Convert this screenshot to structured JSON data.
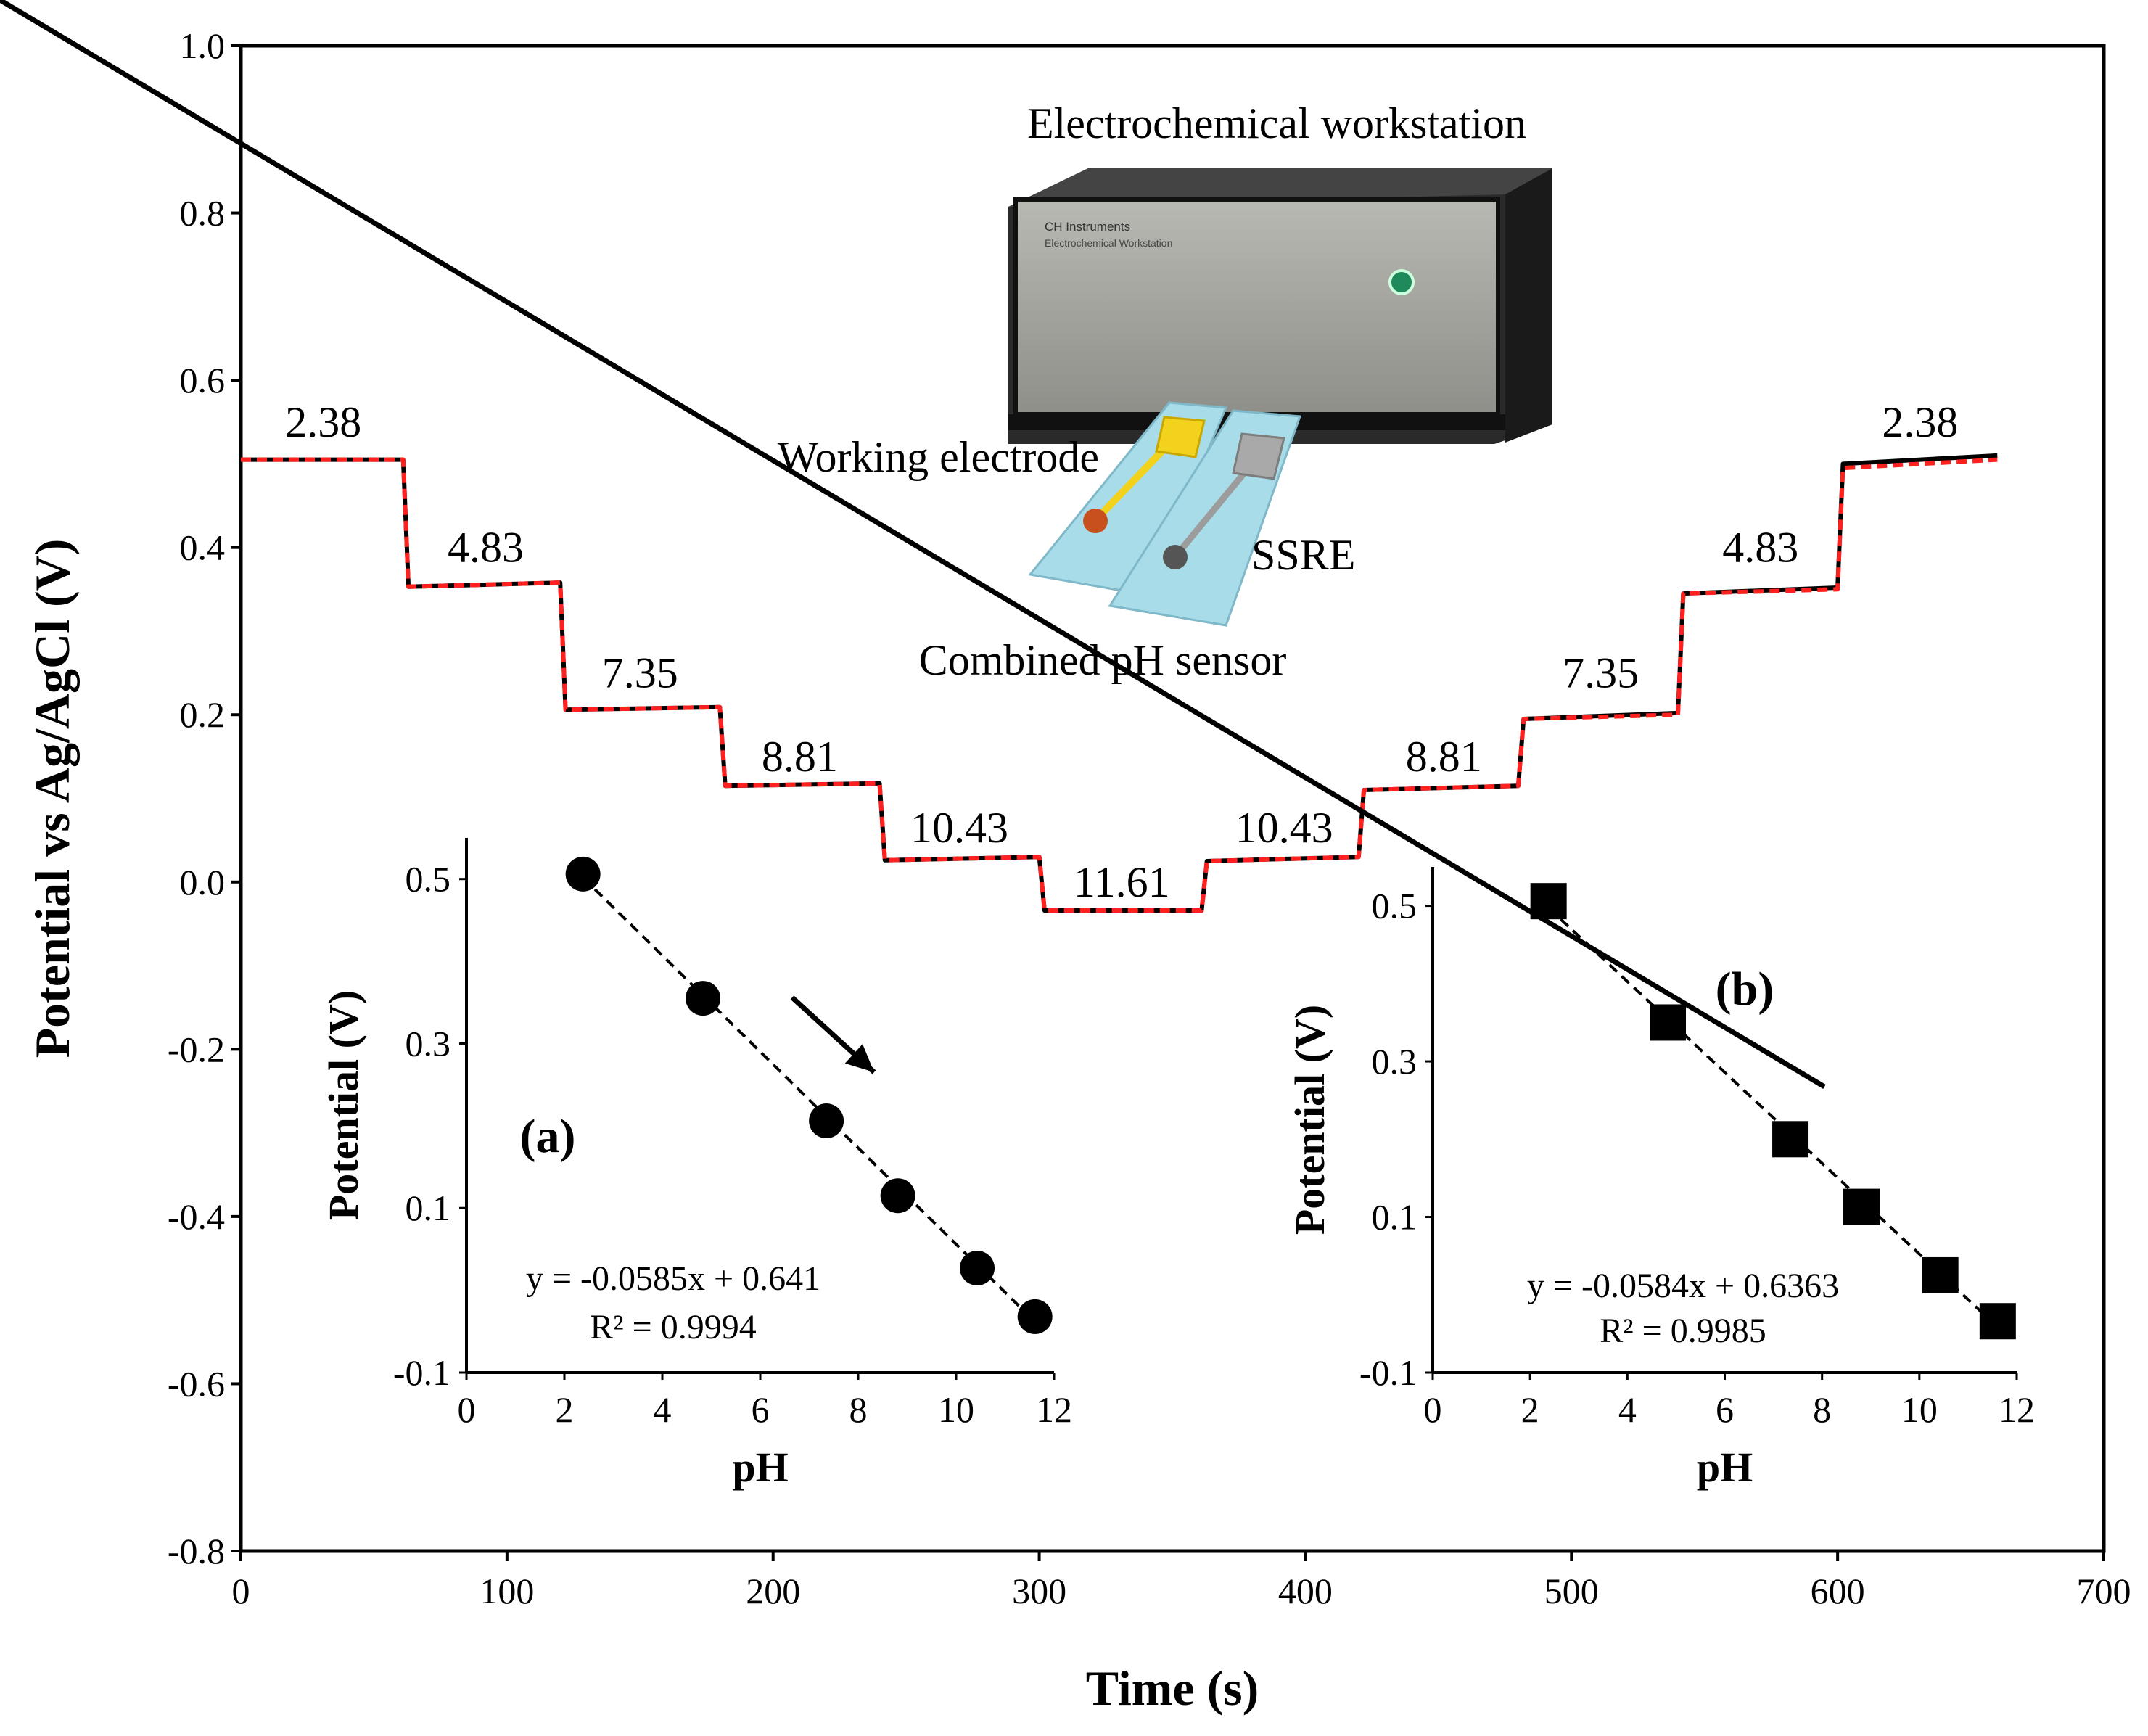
{
  "chart_data": [
    {
      "type": "line",
      "xlabel": "Time (s)",
      "ylabel": "Potential vs Ag/AgCl (V)",
      "xlim": [
        0,
        700
      ],
      "ylim": [
        -0.8,
        1.0
      ],
      "xticks": [
        0,
        100,
        200,
        300,
        400,
        500,
        600,
        700
      ],
      "xtick_labels": [
        "0",
        "100",
        "200",
        "300",
        "400",
        "500",
        "600",
        "700"
      ],
      "yticks": [
        1.0,
        0.8,
        0.6,
        0.4,
        0.2,
        0.0,
        -0.2,
        -0.4,
        -0.6,
        -0.8
      ],
      "ytick_labels": [
        "1.0",
        "0.8",
        "0.6",
        "0.4",
        "0.2",
        "0.0",
        "-0.2",
        "-0.4",
        "-0.6",
        "-0.8"
      ],
      "grid": false,
      "series": [
        {
          "style": "solid",
          "color": "#000000",
          "x": [
            0,
            61,
            63,
            120,
            122,
            180,
            182,
            240,
            242,
            300,
            302,
            361,
            363,
            420,
            422,
            480,
            482,
            540,
            542,
            600,
            602,
            660
          ],
          "y": [
            0.505,
            0.505,
            0.353,
            0.358,
            0.206,
            0.209,
            0.115,
            0.118,
            0.026,
            0.03,
            -0.034,
            -0.034,
            0.025,
            0.03,
            0.11,
            0.115,
            0.195,
            0.202,
            0.345,
            0.352,
            0.5,
            0.51
          ]
        },
        {
          "style": "dashed",
          "color": "#ff2020",
          "x": [
            0,
            61,
            63,
            120,
            122,
            180,
            182,
            240,
            242,
            300,
            302,
            361,
            363,
            420,
            422,
            480,
            482,
            540,
            542,
            600,
            602,
            660
          ],
          "y": [
            0.505,
            0.505,
            0.353,
            0.358,
            0.206,
            0.209,
            0.115,
            0.118,
            0.026,
            0.03,
            -0.034,
            -0.034,
            0.025,
            0.03,
            0.11,
            0.115,
            0.195,
            0.2,
            0.345,
            0.35,
            0.495,
            0.505
          ]
        }
      ],
      "step_labels": [
        {
          "text": "2.38",
          "x": 31,
          "y": 0.55
        },
        {
          "text": "4.83",
          "x": 92,
          "y": 0.4
        },
        {
          "text": "7.35",
          "x": 150,
          "y": 0.25
        },
        {
          "text": "8.81",
          "x": 210,
          "y": 0.15
        },
        {
          "text": "10.43",
          "x": 270,
          "y": 0.065
        },
        {
          "text": "11.61",
          "x": 331,
          "y": 0.0
        },
        {
          "text": "10.43",
          "x": 392,
          "y": 0.065
        },
        {
          "text": "8.81",
          "x": 452,
          "y": 0.15
        },
        {
          "text": "7.35",
          "x": 511,
          "y": 0.25
        },
        {
          "text": "4.83",
          "x": 571,
          "y": 0.4
        },
        {
          "text": "2.38",
          "x": 631,
          "y": 0.55
        }
      ],
      "annotations": {
        "workstation": "Electrochemical workstation",
        "working_electrode": "Working electrode",
        "ssre": "SSRE",
        "combined_sensor": "Combined pH sensor",
        "device_brand": "CH Instruments",
        "device_model": "Electrochemical Workstation"
      },
      "colors": {
        "solid_trace": "#000000",
        "dashed_trace": "#ff2020",
        "electrode_pad": "#f2d21c",
        "electrode_dot": "#c8501e",
        "ssre_pad": "#a9a9a9",
        "ssre_dot": "#555555",
        "substrate": "#a8dce8"
      }
    },
    {
      "type": "scatter",
      "panel": "(a)",
      "marker": "circle",
      "xlabel": "pH",
      "ylabel": "Potential (V)",
      "xlim": [
        0,
        12
      ],
      "ylim": [
        -0.1,
        0.55
      ],
      "xticks": [
        0,
        2,
        4,
        6,
        8,
        10,
        12
      ],
      "xtick_labels": [
        "0",
        "2",
        "4",
        "6",
        "8",
        "10",
        "12"
      ],
      "yticks": [
        0.5,
        0.3,
        0.1,
        -0.1
      ],
      "ytick_labels": [
        "0.5",
        "0.3",
        "0.1",
        "-0.1"
      ],
      "x": [
        2.38,
        4.83,
        7.35,
        8.81,
        10.43,
        11.61
      ],
      "y": [
        0.506,
        0.355,
        0.206,
        0.115,
        0.027,
        -0.032
      ],
      "fit": {
        "slope": -0.0585,
        "intercept": 0.641,
        "equation": "y = -0.0585x + 0.641",
        "r2": "R² = 0.9994"
      },
      "arrow": "down-right"
    },
    {
      "type": "scatter",
      "panel": "(b)",
      "marker": "square",
      "xlabel": "pH",
      "ylabel": "Potential (V)",
      "xlim": [
        0,
        12
      ],
      "ylim": [
        -0.1,
        0.55
      ],
      "xticks": [
        0,
        2,
        4,
        6,
        8,
        10,
        12
      ],
      "xtick_labels": [
        "0",
        "2",
        "4",
        "6",
        "8",
        "10",
        "12"
      ],
      "yticks": [
        0.5,
        0.3,
        0.1,
        -0.1
      ],
      "ytick_labels": [
        "0.5",
        "0.3",
        "0.1",
        "-0.1"
      ],
      "x": [
        2.38,
        4.83,
        7.35,
        8.81,
        10.43,
        11.61
      ],
      "y": [
        0.506,
        0.35,
        0.2,
        0.113,
        0.025,
        -0.034
      ],
      "fit": {
        "slope": -0.0584,
        "intercept": 0.6363,
        "equation": "y = -0.0584x + 0.6363",
        "r2": "R² = 0.9985"
      },
      "arrow": "up-left"
    }
  ]
}
